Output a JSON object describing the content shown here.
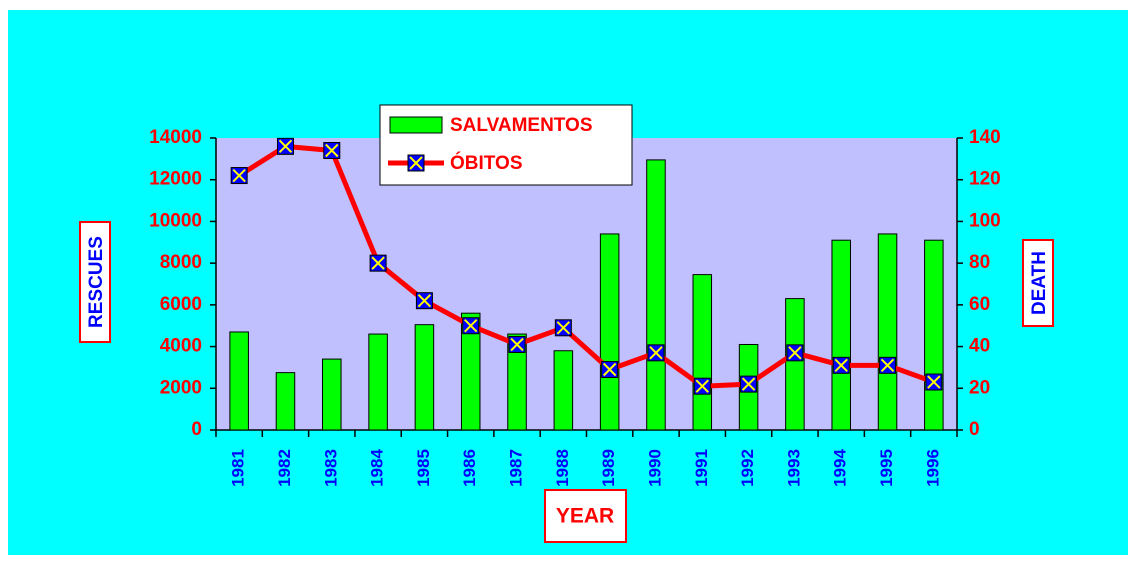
{
  "chart_data": {
    "type": "bar_line",
    "categories": [
      "1981",
      "1982",
      "1983",
      "1984",
      "1985",
      "1986",
      "1987",
      "1988",
      "1989",
      "1990",
      "1991",
      "1992",
      "1993",
      "1994",
      "1995",
      "1996"
    ],
    "series": [
      {
        "name": "SALVAMENTOS",
        "type": "bar",
        "color": "#00ff00",
        "values": [
          4700,
          2750,
          3400,
          4600,
          5050,
          5600,
          4600,
          3800,
          9400,
          12950,
          7450,
          4100,
          6300,
          9100,
          9400,
          9100
        ]
      },
      {
        "name": "ÓBITOS",
        "type": "line",
        "axis": "y2",
        "color": "#ff0000",
        "values": [
          122,
          136,
          134,
          80,
          62,
          50,
          41,
          49,
          29,
          37,
          21,
          22,
          37,
          31,
          31,
          23
        ]
      }
    ],
    "ylabel": "RESCUES",
    "y2label": "DEATH",
    "xlabel": "YEAR",
    "ylim": [
      0,
      14000
    ],
    "yticks": [
      0,
      2000,
      4000,
      6000,
      8000,
      10000,
      12000,
      14000
    ],
    "y2lim": [
      0,
      140
    ],
    "y2ticks": [
      0,
      20,
      40,
      60,
      80,
      100,
      120,
      140
    ],
    "legend": "top"
  }
}
